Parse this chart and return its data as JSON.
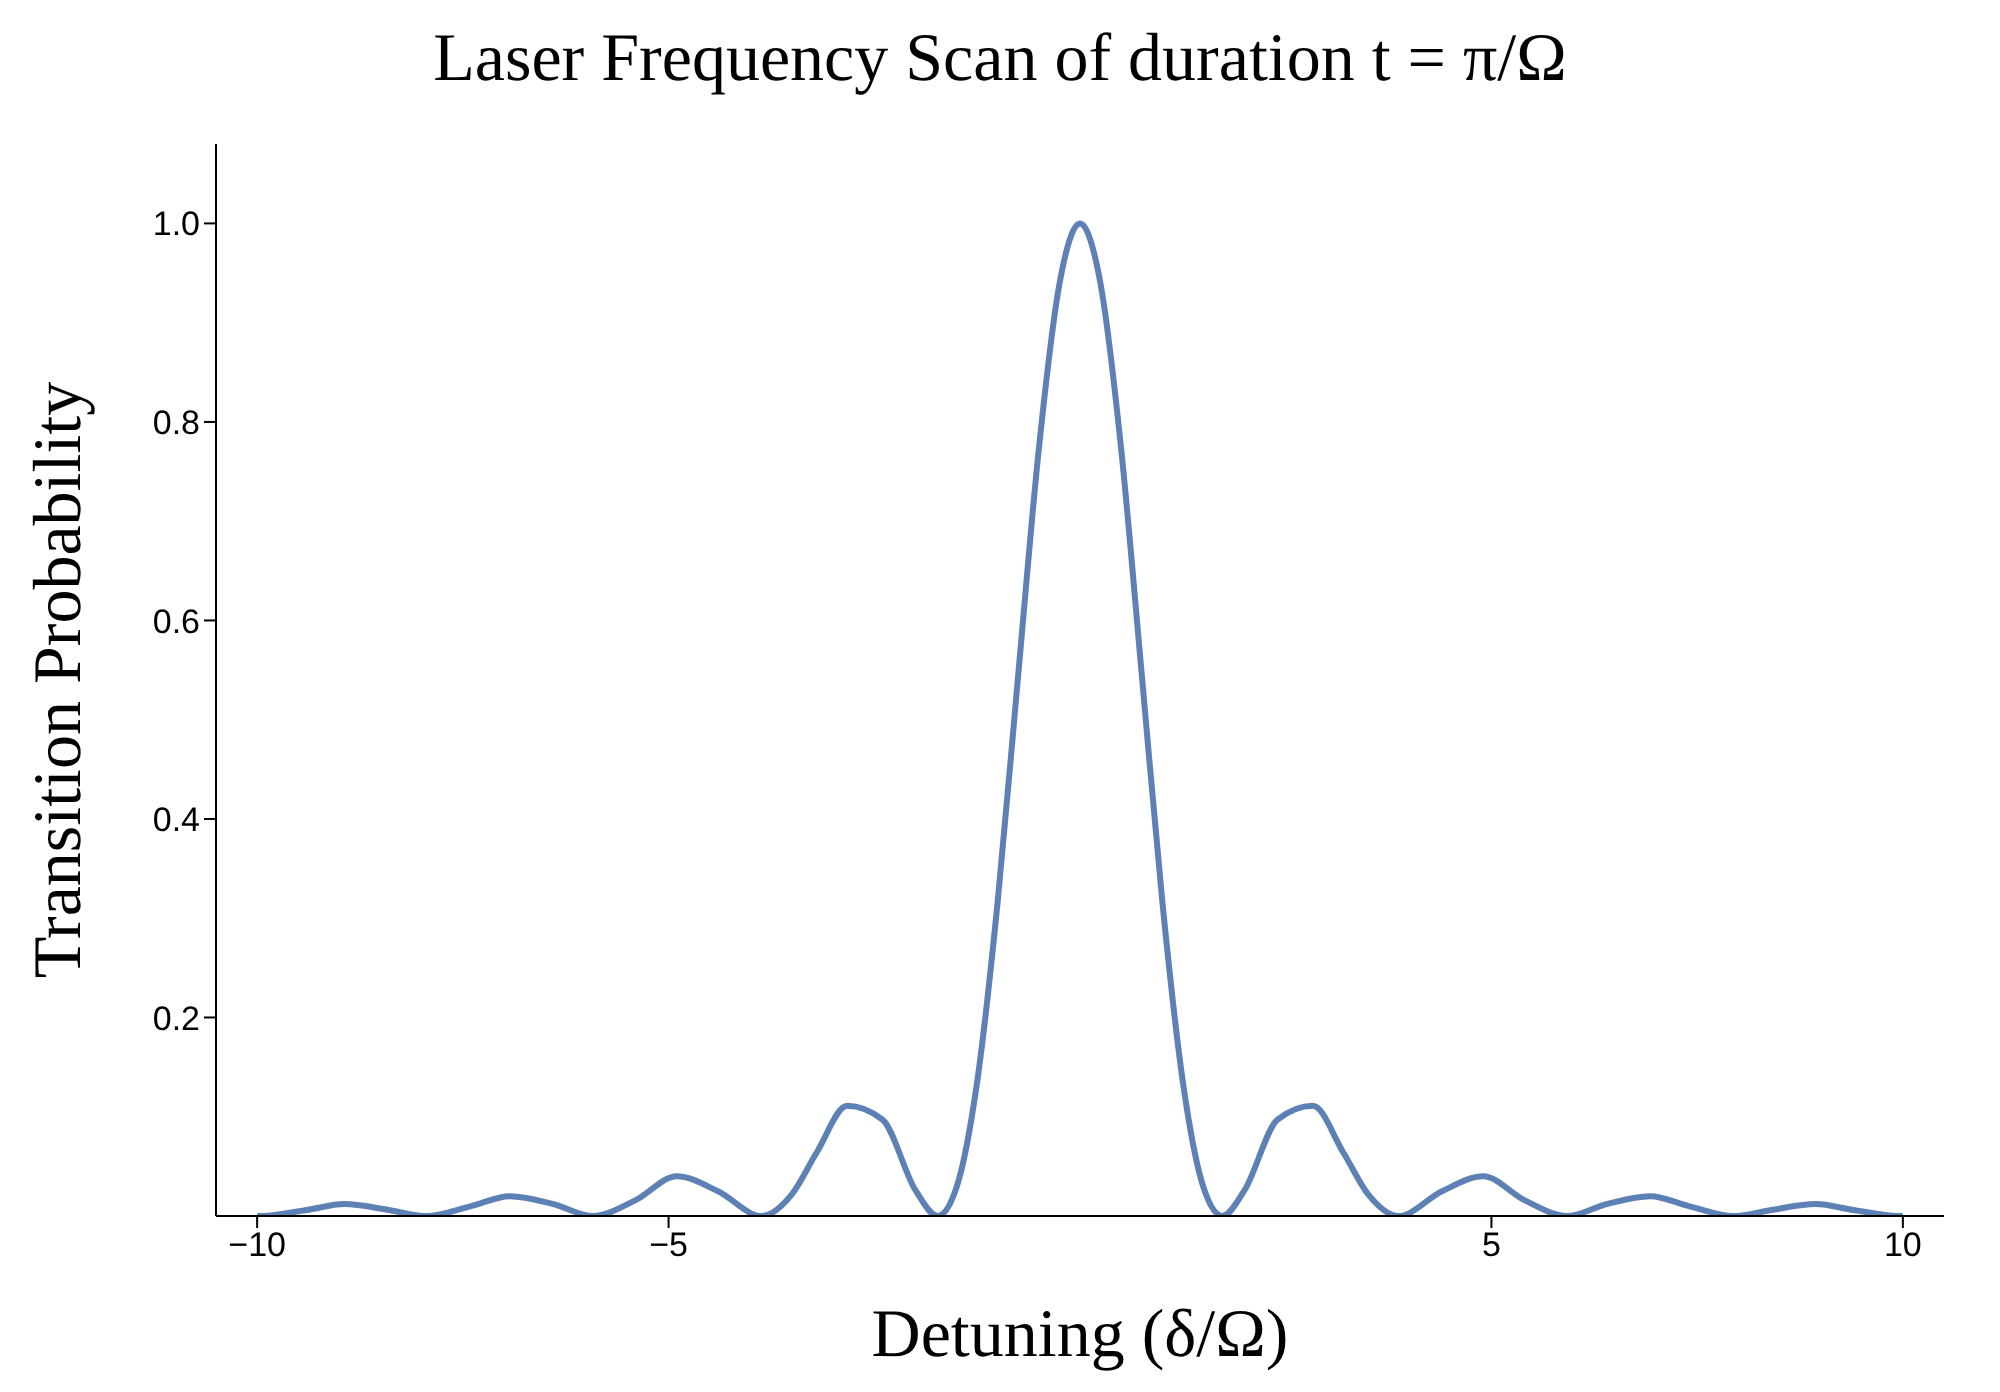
{
  "chart_data": {
    "type": "line",
    "title": "Laser Frequency Scan of duration t = π/Ω",
    "xlabel": "Detuning (δ/Ω)",
    "ylabel": "Transition Probability",
    "x": [
      -10,
      -9.95,
      -9.4,
      -8.94,
      -8.4,
      -7.94,
      -7.4,
      -6.93,
      -6.4,
      -5.92,
      -5.4,
      -4.9,
      -4.4,
      -3.87,
      -3.5,
      -3.2,
      -2.83,
      -2.4,
      -2,
      -1.73,
      -1.5,
      -1.25,
      -1,
      -0.75,
      -0.5,
      -0.25,
      0,
      0.25,
      0.5,
      0.75,
      1,
      1.25,
      1.5,
      1.73,
      2,
      2.4,
      2.83,
      3.2,
      3.5,
      3.87,
      4.4,
      4.9,
      5.4,
      5.92,
      6.4,
      6.93,
      7.4,
      7.94,
      8.4,
      8.94,
      9.4,
      9.95,
      10
    ],
    "series": [
      {
        "color": "#5e81b5",
        "values": [
          0,
          0,
          0.006,
          0.012,
          0.006,
          0,
          0.01,
          0.02,
          0.012,
          0,
          0.016,
          0.04,
          0.025,
          0,
          0.022,
          0.064,
          0.111,
          0.097,
          0.026,
          0,
          0.029,
          0.135,
          0.317,
          0.546,
          0.773,
          0.939,
          1,
          0.939,
          0.773,
          0.546,
          0.317,
          0.135,
          0.029,
          0,
          0.026,
          0.097,
          0.111,
          0.064,
          0.022,
          0,
          0.025,
          0.04,
          0.016,
          0,
          0.012,
          0.02,
          0.01,
          0,
          0.006,
          0.012,
          0.006,
          0,
          0
        ]
      }
    ],
    "xlim": [
      -10.5,
      10.5
    ],
    "xticks": [
      {
        "value": -10,
        "label": "−10"
      },
      {
        "value": -5,
        "label": "−5"
      },
      5,
      10
    ],
    "ylim": [
      0,
      1.08
    ],
    "yticks": [
      0.2,
      0.4,
      0.6,
      0.8,
      {
        "value": 1,
        "label": "1.0"
      }
    ],
    "grid": false,
    "legend": false,
    "marker": "none",
    "line_style": "solid"
  }
}
